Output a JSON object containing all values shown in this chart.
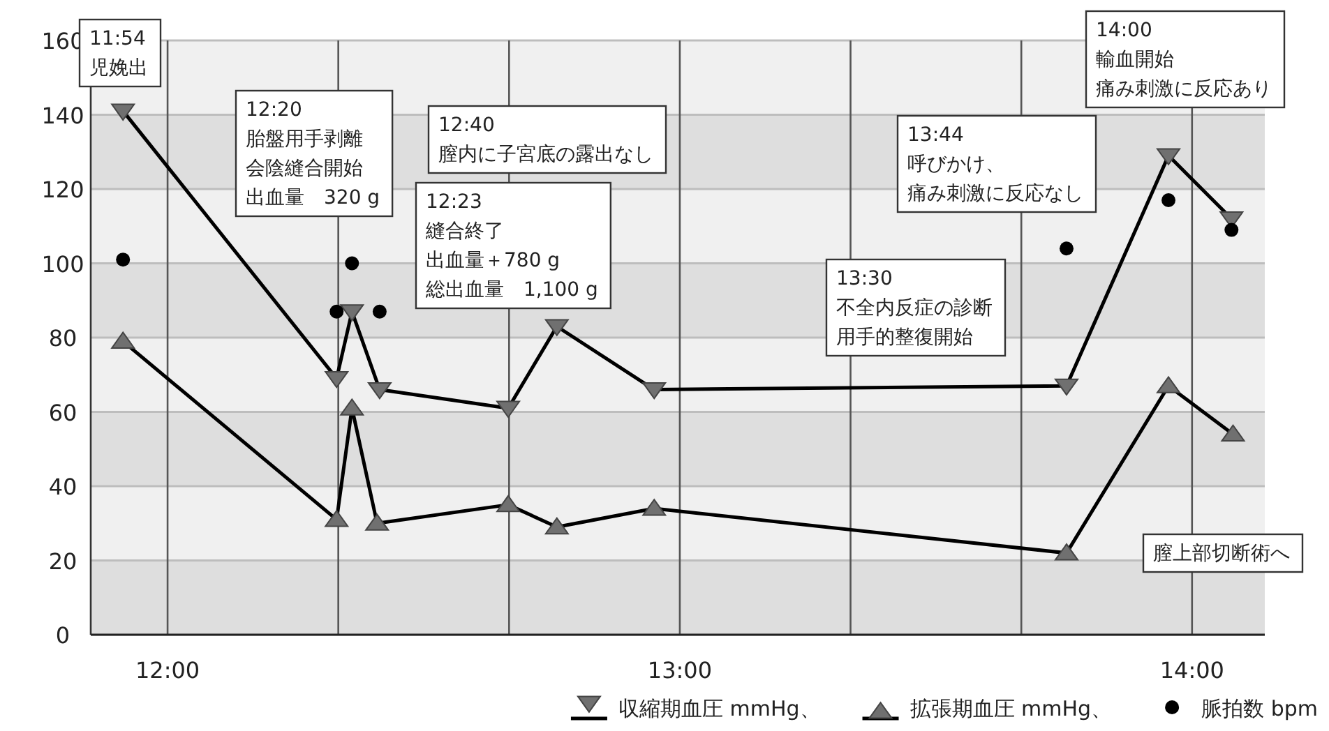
{
  "chart_data": {
    "type": "line",
    "xlim": [
      11.85,
      14.142
    ],
    "ylim": [
      0,
      160
    ],
    "yticks": [
      0,
      20,
      40,
      60,
      80,
      100,
      120,
      140,
      160
    ],
    "xticks": [
      {
        "value": 12,
        "label": "12:00"
      },
      {
        "value": 12.3333,
        "label": null
      },
      {
        "value": 12.6667,
        "label": null
      },
      {
        "value": 13,
        "label": "13:00"
      },
      {
        "value": 13.3333,
        "label": null
      },
      {
        "value": 13.6667,
        "label": null
      },
      {
        "value": 14,
        "label": "14:00"
      }
    ],
    "grid": true,
    "legend": "bottom right",
    "series": [
      {
        "name": "収縮期血圧 mmHg、",
        "type": "line",
        "marker": "triangle-down",
        "color": "#000000",
        "x": [
          11.913,
          12.33,
          12.36,
          12.414,
          12.665,
          12.76,
          12.95,
          13.755,
          13.954,
          14.077
        ],
        "values": [
          141,
          69,
          87,
          66,
          61,
          83,
          66,
          67,
          129,
          112
        ]
      },
      {
        "name": "拡張期血圧 mmHg、",
        "type": "line",
        "marker": "triangle",
        "color": "#000000",
        "x": [
          11.913,
          12.33,
          12.36,
          12.409,
          12.665,
          12.76,
          12.95,
          13.755,
          13.954,
          14.08
        ],
        "values": [
          79,
          31,
          61,
          30,
          35,
          29,
          34,
          22,
          67,
          54
        ]
      },
      {
        "name": "脈拍数 bpm",
        "type": "scatter",
        "marker": "circle",
        "color": "#000000",
        "x": [
          11.913,
          12.33,
          12.36,
          12.414,
          13.755,
          13.954,
          14.077
        ],
        "values": [
          101,
          87,
          100,
          87,
          104,
          117,
          109
        ]
      }
    ],
    "annotations": [
      "11:54",
      "児娩出",
      "12:20",
      "胎盤用手剥離",
      "会陰縫合開始",
      "出血量　320 g",
      "12:40",
      "膣内に子宮底の露出なし",
      "12:23",
      "縫合終了",
      "出血量＋780 g",
      "総出血量　1,100 g",
      "13:30",
      "不全内反症の診断",
      "用手的整復開始",
      "13:44",
      "呼びかけ、",
      "痛み刺激に反応なし",
      "14:00",
      "輸血開始",
      "痛み刺激に反応あり",
      "膣上部切断術へ"
    ]
  }
}
